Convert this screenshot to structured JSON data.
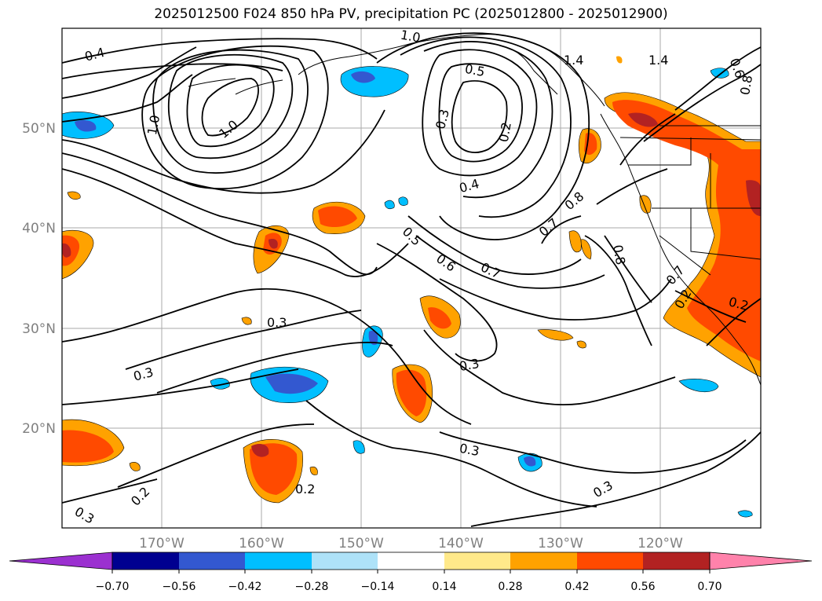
{
  "title": "2025012500 F024 850 hPa PV, precipitation PC (2025012800 - 2025012900)",
  "latitude_labels": [
    "50°N",
    "40°N",
    "30°N",
    "20°N"
  ],
  "longitude_labels": [
    "170°W",
    "160°W",
    "150°W",
    "140°W",
    "130°W",
    "120°W"
  ],
  "contour_labels": [
    "0.4",
    "1.0",
    "1.0",
    "1.4",
    "1.4",
    "0.6",
    "0.8",
    "1.0",
    "0.5",
    "0.3",
    "0.2",
    "0.4",
    "0.8",
    "0.7",
    "0.8",
    "0.5",
    "0.6",
    "0.7",
    "0.7",
    "0.2",
    "0.3",
    "0.3",
    "0.3",
    "0.3",
    "0.2",
    "0.3",
    "0.2",
    "0.3",
    "0.2"
  ],
  "colorbar": {
    "tick_labels": [
      "−0.70",
      "−0.56",
      "−0.42",
      "−0.28",
      "−0.14",
      "0.14",
      "0.28",
      "0.42",
      "0.56",
      "0.70"
    ],
    "colors": [
      "#9b30d0",
      "#000090",
      "#3358d0",
      "#00bfff",
      "#aee2f8",
      "#ffffff",
      "#ffe98a",
      "#ffa200",
      "#ff4a00",
      "#b22222",
      "#ff82ab"
    ]
  }
}
